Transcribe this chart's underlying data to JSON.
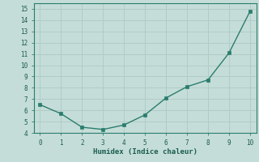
{
  "x": [
    0,
    1,
    2,
    3,
    4,
    5,
    6,
    7,
    8,
    9,
    10
  ],
  "y": [
    6.5,
    5.7,
    4.5,
    4.3,
    4.7,
    5.6,
    7.1,
    8.1,
    8.7,
    11.1,
    14.8
  ],
  "xlabel": "Humidex (Indice chaleur)",
  "xlim": [
    -0.3,
    10.3
  ],
  "ylim": [
    4,
    15.5
  ],
  "yticks": [
    4,
    5,
    6,
    7,
    8,
    9,
    10,
    11,
    12,
    13,
    14,
    15
  ],
  "xticks": [
    0,
    1,
    2,
    3,
    4,
    5,
    6,
    7,
    8,
    9,
    10
  ],
  "line_color": "#2a7d6e",
  "marker_color": "#2a7d6e",
  "bg_color": "#c5ddd8",
  "grid_color": "#b0ccc7",
  "axis_color": "#2a7d6e",
  "tick_color": "#2a7d6e",
  "label_color": "#1a5c50",
  "font_family": "monospace"
}
